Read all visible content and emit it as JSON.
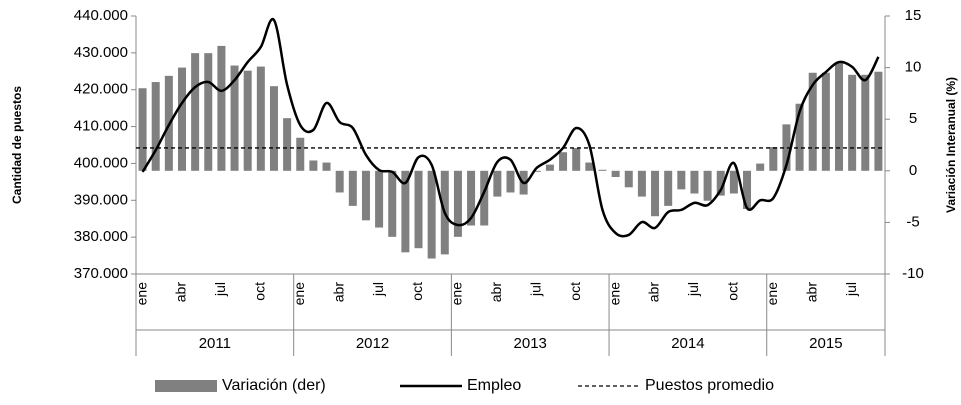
{
  "chart_data": {
    "type": "bar-line",
    "y_label": "Cantidad de puestos",
    "y2_label": "Variación Interanual (%)",
    "categories": [
      "ene",
      null,
      null,
      "abr",
      null,
      null,
      "jul",
      null,
      null,
      "oct",
      null,
      null,
      "ene",
      null,
      null,
      "abr",
      null,
      null,
      "jul",
      null,
      null,
      "oct",
      null,
      null,
      "ene",
      null,
      null,
      "abr",
      null,
      null,
      "jul",
      null,
      null,
      "oct",
      null,
      null,
      "ene",
      null,
      null,
      "abr",
      null,
      null,
      "jul",
      null,
      null,
      "oct",
      null,
      null,
      "ene",
      null,
      null,
      "abr",
      null,
      null,
      "jul",
      null,
      null
    ],
    "years": [
      "2011",
      "2012",
      "2013",
      "2014",
      "2015"
    ],
    "series": [
      {
        "name": "Variación (der)",
        "type": "bar",
        "axis": "y2",
        "color": "#808080",
        "values": [
          8.0,
          8.6,
          9.2,
          10.0,
          11.4,
          11.4,
          12.1,
          10.2,
          9.7,
          10.1,
          8.2,
          5.1,
          3.2,
          1.0,
          0.8,
          -2.1,
          -3.4,
          -4.8,
          -5.5,
          -6.4,
          -7.9,
          -7.5,
          -8.5,
          -8.1,
          -6.4,
          -5.3,
          -5.3,
          -2.5,
          -2.1,
          -2.3,
          -0.1,
          0.6,
          1.8,
          2.2,
          0.8,
          0.1,
          -0.6,
          -1.6,
          -2.5,
          -4.4,
          -3.4,
          -1.8,
          -2.2,
          -2.9,
          -2.4,
          -2.2,
          -3.7,
          0.7,
          2.3,
          4.5,
          6.5,
          9.5,
          9.5,
          10.5,
          9.3,
          9.3,
          9.6
        ]
      },
      {
        "name": "Empleo",
        "type": "line",
        "color": "#000000",
        "values": [
          397700,
          403600,
          410400,
          416400,
          420700,
          422100,
          419700,
          422600,
          427500,
          431600,
          438900,
          421300,
          410400,
          409100,
          416400,
          411200,
          409600,
          402300,
          398200,
          397700,
          394700,
          401700,
          399600,
          386600,
          383300,
          385200,
          392300,
          400400,
          401000,
          394700,
          398800,
          401000,
          404200,
          409600,
          405000,
          387400,
          381100,
          380600,
          384100,
          382500,
          386800,
          387400,
          389300,
          388700,
          392800,
          400100,
          387900,
          390000,
          390600,
          399600,
          414000,
          421300,
          424800,
          427500,
          426200,
          422600,
          428900
        ]
      }
    ],
    "reference_line": {
      "name": "Puestos promedio",
      "value": 404200,
      "color": "#000000"
    },
    "ylim": [
      370000,
      440000
    ],
    "yticks": [
      {
        "value": 370000,
        "label": "370.000"
      },
      {
        "value": 380000,
        "label": "380.000"
      },
      {
        "value": 390000,
        "label": "390.000"
      },
      {
        "value": 400000,
        "label": "400.000"
      },
      {
        "value": 410000,
        "label": "410.000"
      },
      {
        "value": 420000,
        "label": "420.000"
      },
      {
        "value": 430000,
        "label": "430.000"
      },
      {
        "value": 440000,
        "label": "440.000"
      }
    ],
    "y2lim": [
      -10,
      15
    ],
    "y2ticks": [
      -10,
      -5,
      0,
      5,
      10,
      15
    ]
  }
}
